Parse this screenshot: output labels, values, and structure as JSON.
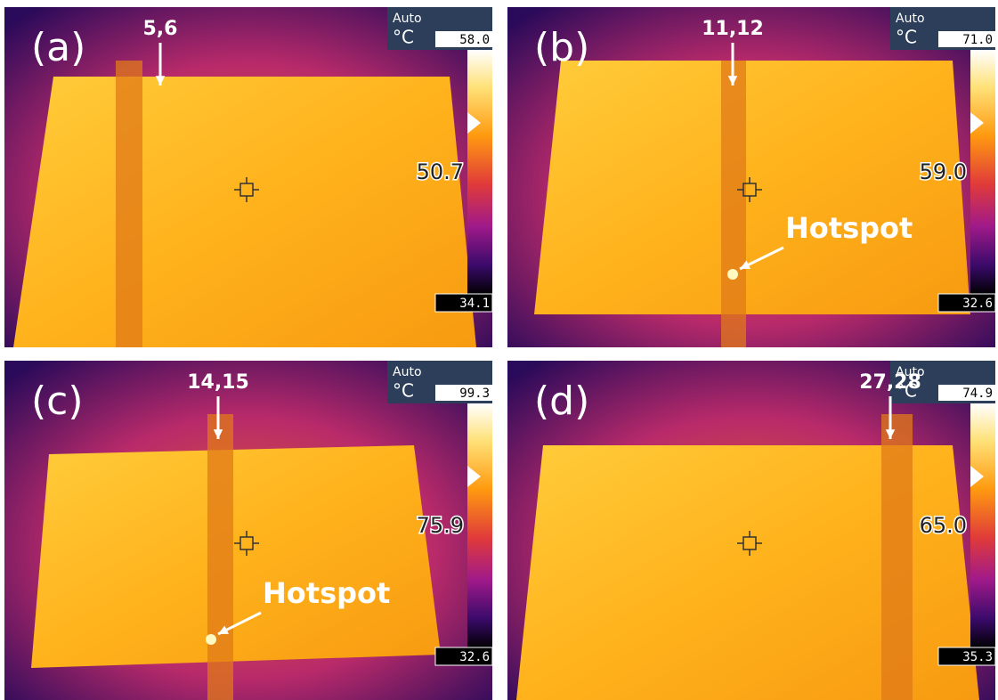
{
  "panels": [
    {
      "label": "(a)",
      "cell_label": "5,6",
      "mode": "Auto",
      "unit": "°C",
      "scale_max": "58.0",
      "center_temp": "50.7",
      "scale_min": "34.1"
    },
    {
      "label": "(b)",
      "cell_label": "11,12",
      "mode": "Auto",
      "unit": "°C",
      "scale_max": "71.0",
      "center_temp": "59.0",
      "scale_min": "32.6",
      "annotation": "Hotspot"
    },
    {
      "label": "(c)",
      "cell_label": "14,15",
      "mode": "Auto",
      "unit": "°C",
      "scale_max": "99.3",
      "center_temp": "75.9",
      "scale_min": "32.6",
      "annotation": "Hotspot"
    },
    {
      "label": "(d)",
      "cell_label": "27,28",
      "mode": "Auto",
      "unit": "°C",
      "scale_max": "74.9",
      "center_temp": "65.0",
      "scale_min": "35.3"
    }
  ]
}
